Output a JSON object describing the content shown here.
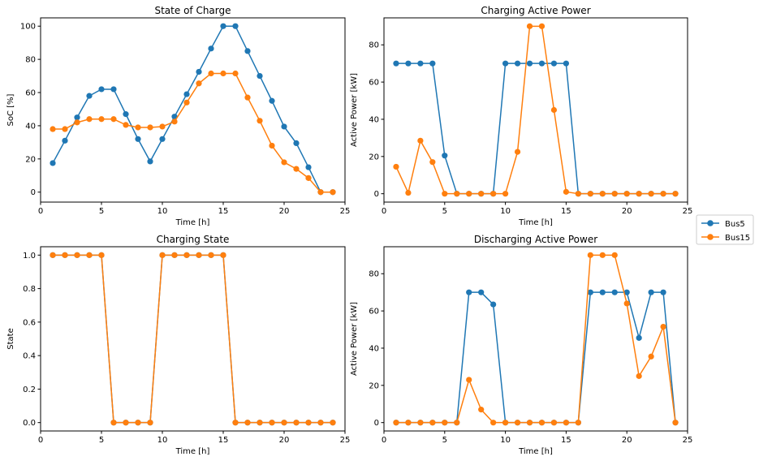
{
  "chart_data": [
    {
      "type": "line",
      "title": "State of Charge",
      "xlabel": "Time [h]",
      "ylabel": "SoC [%]",
      "xlim": [
        0,
        25
      ],
      "ylim": [
        -6,
        105
      ],
      "xticks": [
        0,
        5,
        10,
        15,
        20,
        25
      ],
      "yticks": [
        0,
        20,
        40,
        60,
        80,
        100
      ],
      "x": [
        1,
        2,
        3,
        4,
        5,
        6,
        7,
        8,
        9,
        10,
        11,
        12,
        13,
        14,
        15,
        16,
        17,
        18,
        19,
        20,
        21,
        22,
        23,
        24
      ],
      "series": [
        {
          "name": "Bus5",
          "values": [
            17.5,
            31,
            45,
            58,
            62,
            62,
            47,
            32,
            18.5,
            32,
            45.5,
            59,
            72.5,
            86.5,
            100,
            100,
            85,
            70,
            55,
            39.5,
            29.5,
            15,
            0,
            0
          ]
        },
        {
          "name": "Bus15",
          "values": [
            38,
            38,
            42,
            44,
            44,
            44,
            40.5,
            39,
            39,
            39.5,
            42.5,
            54,
            65.5,
            71.5,
            71.5,
            71.5,
            57,
            43,
            28,
            18,
            14,
            8.5,
            0,
            0
          ]
        }
      ]
    },
    {
      "type": "line",
      "title": "Charging Active Power",
      "xlabel": "Time [h]",
      "ylabel": "Active Power [kW]",
      "xlim": [
        0,
        25
      ],
      "ylim": [
        -4.5,
        94.5
      ],
      "xticks": [
        0,
        5,
        10,
        15,
        20,
        25
      ],
      "yticks": [
        0,
        20,
        40,
        60,
        80
      ],
      "x": [
        1,
        2,
        3,
        4,
        5,
        6,
        7,
        8,
        9,
        10,
        11,
        12,
        13,
        14,
        15,
        16,
        17,
        18,
        19,
        20,
        21,
        22,
        23,
        24
      ],
      "series": [
        {
          "name": "Bus5",
          "values": [
            70,
            70,
            70,
            70,
            20.5,
            0,
            0,
            0,
            0,
            70,
            70,
            70,
            70,
            70,
            70,
            0,
            0,
            0,
            0,
            0,
            0,
            0,
            0,
            0
          ]
        },
        {
          "name": "Bus15",
          "values": [
            14.5,
            0.5,
            28.5,
            17,
            0,
            0,
            0,
            0,
            0,
            0,
            22.5,
            90,
            90,
            45,
            1,
            0,
            0,
            0,
            0,
            0,
            0,
            0,
            0,
            0
          ]
        }
      ]
    },
    {
      "type": "line",
      "title": "Charging State",
      "xlabel": "Time [h]",
      "ylabel": "State",
      "xlim": [
        0,
        25
      ],
      "ylim": [
        -0.05,
        1.05
      ],
      "xticks": [
        0,
        5,
        10,
        15,
        20,
        25
      ],
      "yticks": [
        "0.0",
        "0.2",
        "0.4",
        "0.6",
        "0.8",
        "1.0"
      ],
      "x": [
        1,
        2,
        3,
        4,
        5,
        6,
        7,
        8,
        9,
        10,
        11,
        12,
        13,
        14,
        15,
        16,
        17,
        18,
        19,
        20,
        21,
        22,
        23,
        24
      ],
      "series": [
        {
          "name": "Bus5",
          "values": [
            1,
            1,
            1,
            1,
            1,
            0,
            0,
            0,
            0,
            1,
            1,
            1,
            1,
            1,
            1,
            0,
            0,
            0,
            0,
            0,
            0,
            0,
            0,
            0
          ]
        },
        {
          "name": "Bus15",
          "values": [
            1,
            1,
            1,
            1,
            1,
            0,
            0,
            0,
            0,
            1,
            1,
            1,
            1,
            1,
            1,
            0,
            0,
            0,
            0,
            0,
            0,
            0,
            0,
            0
          ]
        }
      ]
    },
    {
      "type": "line",
      "title": "Discharging Active Power",
      "xlabel": "Time [h]",
      "ylabel": "Active Power [kW]",
      "xlim": [
        0,
        25
      ],
      "ylim": [
        -4.5,
        94.5
      ],
      "xticks": [
        0,
        5,
        10,
        15,
        20,
        25
      ],
      "yticks": [
        0,
        20,
        40,
        60,
        80
      ],
      "x": [
        1,
        2,
        3,
        4,
        5,
        6,
        7,
        8,
        9,
        10,
        11,
        12,
        13,
        14,
        15,
        16,
        17,
        18,
        19,
        20,
        21,
        22,
        23,
        24
      ],
      "series": [
        {
          "name": "Bus5",
          "values": [
            0,
            0,
            0,
            0,
            0,
            0,
            70,
            70,
            63.5,
            0,
            0,
            0,
            0,
            0,
            0,
            0,
            70,
            70,
            70,
            70,
            45.5,
            70,
            70,
            0
          ]
        },
        {
          "name": "Bus15",
          "values": [
            0,
            0,
            0,
            0,
            0,
            0,
            23,
            7,
            0,
            0,
            0,
            0,
            0,
            0,
            0,
            0,
            90,
            90,
            90,
            64,
            25,
            35.5,
            51.5,
            0
          ]
        }
      ]
    }
  ],
  "legend": {
    "placement": "right",
    "entries": [
      {
        "name": "Bus5",
        "color": "#1f77b4"
      },
      {
        "name": "Bus15",
        "color": "#ff7f0e"
      }
    ]
  },
  "colors": {
    "series": [
      "#1f77b4",
      "#ff7f0e"
    ]
  }
}
